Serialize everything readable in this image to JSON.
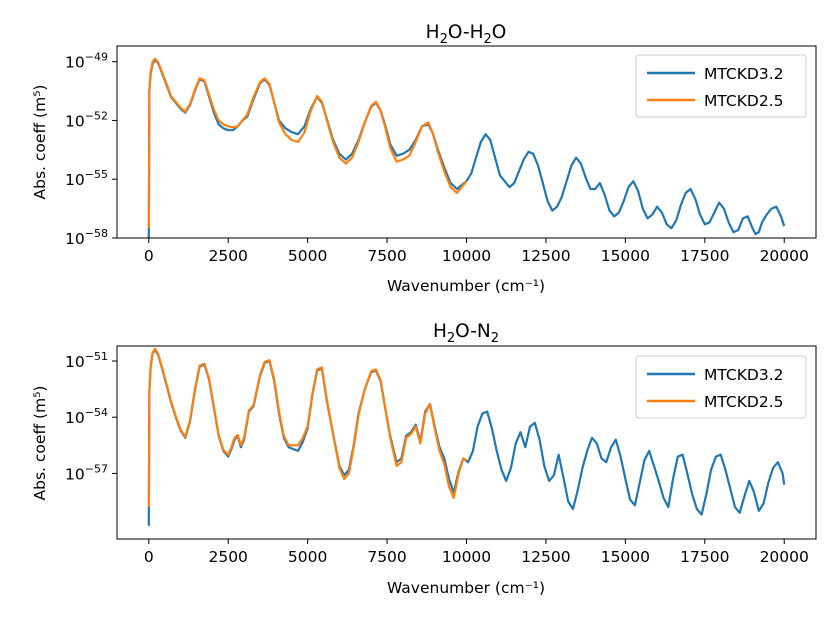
{
  "chart_data": [
    {
      "type": "line",
      "title": "H2O-H2O",
      "title_parts": {
        "a": "H",
        "b": "2",
        "c": "O-H",
        "d": "2",
        "e": "O"
      },
      "xlabel": "Wavenumber (cm⁻¹)",
      "ylabel": "Abs. coeff (m⁵)",
      "xlim": [
        -1000,
        21000
      ],
      "ylim": [
        -58,
        -48.2
      ],
      "yscale": "log",
      "xticks": [
        "0",
        "2500",
        "5000",
        "7500",
        "10000",
        "12500",
        "15000",
        "17500",
        "20000"
      ],
      "yticks": [
        {
          "exp": -49,
          "base": "10",
          "sup": "−49"
        },
        {
          "exp": -52,
          "base": "10",
          "sup": "−52"
        },
        {
          "exp": -55,
          "base": "10",
          "sup": "−55"
        },
        {
          "exp": -58,
          "base": "10",
          "sup": "−58"
        }
      ],
      "legend": {
        "position": "top-right",
        "entries": [
          "MTCKD3.2",
          "MTCKD2.5"
        ]
      },
      "series": [
        {
          "name": "MTCKD3.2",
          "color": "#1f77b4",
          "x": [
            0,
            20,
            60,
            120,
            200,
            300,
            420,
            560,
            700,
            850,
            1000,
            1150,
            1300,
            1450,
            1600,
            1750,
            1900,
            2050,
            2200,
            2350,
            2500,
            2650,
            2800,
            2950,
            3100,
            3300,
            3500,
            3650,
            3800,
            3950,
            4100,
            4300,
            4500,
            4700,
            4900,
            5100,
            5300,
            5450,
            5600,
            5800,
            6000,
            6200,
            6400,
            6600,
            6800,
            7000,
            7150,
            7300,
            7450,
            7600,
            7800,
            8000,
            8200,
            8400,
            8600,
            8800,
            8950,
            9100,
            9300,
            9500,
            9700,
            9850,
            10000,
            10150,
            10300,
            10450,
            10600,
            10750,
            10900,
            11050,
            11200,
            11350,
            11500,
            11650,
            11800,
            11950,
            12100,
            12250,
            12400,
            12550,
            12700,
            12850,
            13000,
            13150,
            13300,
            13450,
            13600,
            13750,
            13900,
            14050,
            14200,
            14350,
            14500,
            14650,
            14800,
            14950,
            15100,
            15250,
            15400,
            15550,
            15700,
            15850,
            16000,
            16150,
            16300,
            16450,
            16600,
            16750,
            16900,
            17050,
            17200,
            17350,
            17500,
            17650,
            17800,
            17950,
            18100,
            18250,
            18400,
            18550,
            18700,
            18850,
            19000,
            19100,
            19200,
            19300,
            19450,
            19600,
            19750,
            19900,
            20000
          ],
          "y": [
            -58,
            -50.5,
            -49.6,
            -49.1,
            -48.9,
            -49.1,
            -49.6,
            -50.2,
            -50.8,
            -51.1,
            -51.4,
            -51.6,
            -51.2,
            -50.5,
            -49.9,
            -50.0,
            -50.8,
            -51.6,
            -52.2,
            -52.4,
            -52.5,
            -52.5,
            -52.3,
            -52.0,
            -51.8,
            -50.9,
            -50.1,
            -49.9,
            -50.2,
            -51.1,
            -52.0,
            -52.4,
            -52.6,
            -52.7,
            -52.3,
            -51.4,
            -50.8,
            -51.1,
            -51.9,
            -53.0,
            -53.7,
            -54.0,
            -53.7,
            -53.0,
            -52.1,
            -51.3,
            -51.1,
            -51.5,
            -52.3,
            -53.2,
            -53.8,
            -53.7,
            -53.5,
            -53.0,
            -52.3,
            -52.2,
            -52.7,
            -53.5,
            -54.4,
            -55.2,
            -55.5,
            -55.3,
            -55.1,
            -54.7,
            -53.9,
            -53.1,
            -52.7,
            -53.0,
            -53.9,
            -54.8,
            -55.1,
            -55.4,
            -55.2,
            -54.6,
            -54.0,
            -53.6,
            -53.7,
            -54.3,
            -55.2,
            -56.1,
            -56.6,
            -56.4,
            -55.9,
            -55.1,
            -54.3,
            -53.9,
            -54.2,
            -54.9,
            -55.5,
            -55.5,
            -55.2,
            -55.8,
            -56.6,
            -56.9,
            -56.7,
            -56.1,
            -55.4,
            -55.1,
            -55.6,
            -56.5,
            -57.0,
            -56.8,
            -56.4,
            -56.7,
            -57.3,
            -57.5,
            -57.1,
            -56.3,
            -55.7,
            -55.5,
            -56.0,
            -56.8,
            -57.3,
            -57.2,
            -56.7,
            -56.2,
            -56.5,
            -57.2,
            -57.7,
            -57.6,
            -57.0,
            -56.9,
            -57.5,
            -57.8,
            -57.7,
            -57.2,
            -56.8,
            -56.5,
            -56.4,
            -56.9,
            -57.4
          ]
        },
        {
          "name": "MTCKD2.5",
          "color": "#ff7f0e",
          "x": [
            0,
            20,
            60,
            120,
            200,
            300,
            420,
            560,
            700,
            850,
            1000,
            1150,
            1300,
            1450,
            1600,
            1750,
            1900,
            2050,
            2200,
            2350,
            2500,
            2650,
            2800,
            2950,
            3100,
            3300,
            3500,
            3650,
            3800,
            3950,
            4100,
            4300,
            4500,
            4700,
            4900,
            5100,
            5300,
            5450,
            5600,
            5800,
            6000,
            6200,
            6400,
            6600,
            6800,
            7000,
            7150,
            7300,
            7450,
            7600,
            7800,
            8000,
            8200,
            8400,
            8600,
            8800,
            8950,
            9100,
            9300,
            9500,
            9700,
            9850,
            10000
          ],
          "y": [
            -57.5,
            -50.4,
            -49.5,
            -49.0,
            -48.85,
            -49.05,
            -49.55,
            -50.15,
            -50.75,
            -51.05,
            -51.35,
            -51.55,
            -51.15,
            -50.45,
            -49.85,
            -49.95,
            -50.7,
            -51.45,
            -52.0,
            -52.2,
            -52.3,
            -52.35,
            -52.3,
            -52.0,
            -51.7,
            -50.8,
            -50.05,
            -49.85,
            -50.15,
            -51.1,
            -52.1,
            -52.7,
            -53.0,
            -53.1,
            -52.6,
            -51.5,
            -50.75,
            -51.05,
            -51.95,
            -53.1,
            -53.9,
            -54.2,
            -53.9,
            -53.1,
            -52.1,
            -51.25,
            -51.05,
            -51.5,
            -52.4,
            -53.4,
            -54.1,
            -54.0,
            -53.8,
            -53.1,
            -52.3,
            -52.1,
            -52.7,
            -53.6,
            -54.6,
            -55.4,
            -55.7,
            -55.4,
            -55.1
          ]
        }
      ]
    },
    {
      "type": "line",
      "title": "H2O-N2",
      "title_parts": {
        "a": "H",
        "b": "2",
        "c": "O-N",
        "d": "2",
        "e": ""
      },
      "xlabel": "Wavenumber (cm⁻¹)",
      "ylabel": "Abs. coeff (m⁵)",
      "xlim": [
        -1000,
        21000
      ],
      "ylim": [
        -60.5,
        -50.2
      ],
      "yscale": "log",
      "xticks": [
        "0",
        "2500",
        "5000",
        "7500",
        "10000",
        "12500",
        "15000",
        "17500",
        "20000"
      ],
      "yticks": [
        {
          "exp": -51,
          "base": "10",
          "sup": "−51"
        },
        {
          "exp": -54,
          "base": "10",
          "sup": "−54"
        },
        {
          "exp": -57,
          "base": "10",
          "sup": "−57"
        }
      ],
      "legend": {
        "position": "top-right",
        "entries": [
          "MTCKD3.2",
          "MTCKD2.5"
        ]
      },
      "series": [
        {
          "name": "MTCKD3.2",
          "color": "#1f77b4",
          "x": [
            0,
            20,
            60,
            120,
            200,
            300,
            420,
            560,
            700,
            850,
            1000,
            1150,
            1300,
            1450,
            1600,
            1750,
            1900,
            2050,
            2200,
            2350,
            2500,
            2600,
            2700,
            2800,
            2900,
            3000,
            3150,
            3300,
            3500,
            3650,
            3800,
            3950,
            4100,
            4250,
            4400,
            4550,
            4700,
            4850,
            5000,
            5150,
            5300,
            5450,
            5600,
            5800,
            6000,
            6150,
            6300,
            6450,
            6600,
            6800,
            7000,
            7150,
            7300,
            7450,
            7600,
            7800,
            7950,
            8100,
            8250,
            8400,
            8550,
            8700,
            8850,
            9000,
            9150,
            9300,
            9450,
            9600,
            9750,
            9900,
            10050,
            10200,
            10350,
            10500,
            10650,
            10800,
            10950,
            11100,
            11250,
            11400,
            11550,
            11700,
            11850,
            12000,
            12150,
            12300,
            12450,
            12600,
            12750,
            12900,
            13050,
            13200,
            13350,
            13500,
            13650,
            13800,
            13950,
            14100,
            14250,
            14400,
            14550,
            14700,
            14850,
            15000,
            15150,
            15300,
            15450,
            15600,
            15750,
            15900,
            16050,
            16200,
            16350,
            16500,
            16650,
            16800,
            16950,
            17100,
            17250,
            17400,
            17550,
            17700,
            17850,
            18000,
            18150,
            18300,
            18450,
            18600,
            18750,
            18900,
            19050,
            19200,
            19350,
            19500,
            19650,
            19800,
            19950,
            20000
          ],
          "y": [
            -59.8,
            -52.6,
            -51.3,
            -50.6,
            -50.4,
            -50.7,
            -51.4,
            -52.3,
            -53.2,
            -54.0,
            -54.7,
            -55.1,
            -54.2,
            -52.6,
            -51.3,
            -51.2,
            -52.0,
            -53.5,
            -55.0,
            -55.8,
            -56.1,
            -55.7,
            -55.2,
            -55.0,
            -55.6,
            -55.2,
            -53.7,
            -53.4,
            -51.8,
            -51.1,
            -51.0,
            -52.1,
            -53.8,
            -55.1,
            -55.6,
            -55.7,
            -55.8,
            -55.3,
            -54.6,
            -52.8,
            -51.5,
            -51.4,
            -53.1,
            -54.9,
            -56.6,
            -57.1,
            -56.8,
            -55.5,
            -53.8,
            -52.5,
            -51.6,
            -51.5,
            -52.1,
            -53.6,
            -55.0,
            -56.4,
            -56.2,
            -55.0,
            -54.8,
            -54.4,
            -55.3,
            -53.7,
            -53.3,
            -54.5,
            -55.6,
            -56.2,
            -57.3,
            -58.0,
            -56.9,
            -56.2,
            -56.4,
            -55.8,
            -54.5,
            -53.8,
            -53.7,
            -54.6,
            -55.8,
            -56.8,
            -57.4,
            -56.7,
            -55.4,
            -54.8,
            -55.6,
            -54.5,
            -54.3,
            -55.2,
            -56.6,
            -57.4,
            -57.1,
            -56.0,
            -57.2,
            -58.5,
            -58.9,
            -57.9,
            -56.7,
            -55.8,
            -55.1,
            -55.4,
            -56.2,
            -56.4,
            -55.6,
            -55.2,
            -56.1,
            -57.3,
            -58.4,
            -58.7,
            -57.5,
            -56.3,
            -55.8,
            -56.6,
            -57.4,
            -58.3,
            -58.8,
            -57.3,
            -56.1,
            -56.0,
            -57.0,
            -58.1,
            -58.9,
            -59.2,
            -58.1,
            -56.8,
            -56.1,
            -56.0,
            -56.8,
            -57.8,
            -58.8,
            -59.1,
            -58.2,
            -57.4,
            -58.0,
            -59.0,
            -58.6,
            -57.5,
            -56.7,
            -56.4,
            -57.0,
            -57.6
          ]
        },
        {
          "name": "MTCKD2.5",
          "color": "#ff7f0e",
          "x": [
            0,
            20,
            60,
            120,
            200,
            300,
            420,
            560,
            700,
            850,
            1000,
            1150,
            1300,
            1450,
            1600,
            1750,
            1900,
            2050,
            2200,
            2350,
            2500,
            2600,
            2700,
            2800,
            2900,
            3000,
            3150,
            3300,
            3500,
            3650,
            3800,
            3950,
            4100,
            4250,
            4400,
            4550,
            4700,
            4850,
            5000,
            5150,
            5300,
            5450,
            5600,
            5800,
            6000,
            6150,
            6300,
            6450,
            6600,
            6800,
            7000,
            7150,
            7300,
            7450,
            7600,
            7800,
            7950,
            8100,
            8250,
            8400,
            8550,
            8700,
            8850,
            9000,
            9150,
            9300,
            9450,
            9600,
            9750,
            9900,
            10000
          ],
          "y": [
            -58.8,
            -52.5,
            -51.2,
            -50.55,
            -50.35,
            -50.65,
            -51.35,
            -52.25,
            -53.15,
            -53.95,
            -54.65,
            -55.05,
            -54.15,
            -52.55,
            -51.25,
            -51.15,
            -51.95,
            -53.45,
            -54.95,
            -55.75,
            -56.0,
            -55.6,
            -55.1,
            -54.95,
            -55.5,
            -55.1,
            -53.65,
            -53.35,
            -51.75,
            -51.05,
            -50.95,
            -52.0,
            -53.7,
            -55.0,
            -55.5,
            -55.5,
            -55.5,
            -55.1,
            -54.5,
            -52.75,
            -51.45,
            -51.35,
            -53.0,
            -54.9,
            -56.7,
            -57.3,
            -57.0,
            -55.6,
            -53.9,
            -52.5,
            -51.55,
            -51.45,
            -52.05,
            -53.6,
            -55.1,
            -56.6,
            -56.4,
            -55.1,
            -54.9,
            -54.5,
            -55.4,
            -53.8,
            -53.3,
            -54.6,
            -55.8,
            -56.5,
            -57.7,
            -58.3,
            -57.0,
            -56.2,
            -56.3
          ]
        }
      ]
    }
  ]
}
